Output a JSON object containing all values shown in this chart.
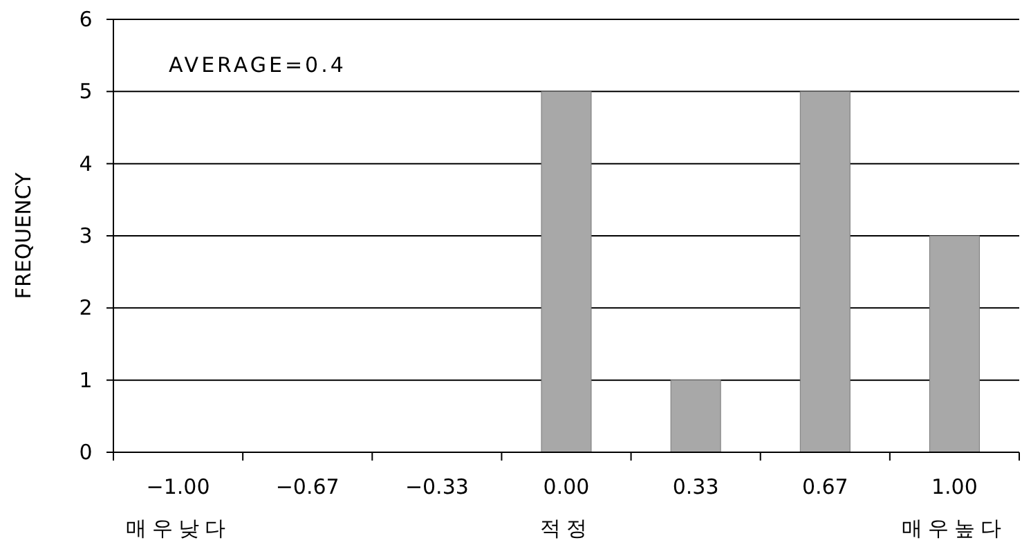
{
  "chart_data": {
    "type": "bar",
    "categories": [
      "−1.00\n매우낮다",
      "−0.67",
      "−0.33",
      "0.00\n적정",
      "0.33",
      "0.67",
      "1.00\n매우높다"
    ],
    "values": [
      0,
      0,
      0,
      5,
      1,
      5,
      3
    ],
    "color": "#a8a8a8",
    "ylabel": "FREQUENCY",
    "annotations": [
      "AVERAGE=0.4"
    ],
    "ylim": [
      0,
      6
    ],
    "yticks": [
      0,
      1,
      2,
      3,
      4,
      5,
      6
    ],
    "grid": "y"
  }
}
